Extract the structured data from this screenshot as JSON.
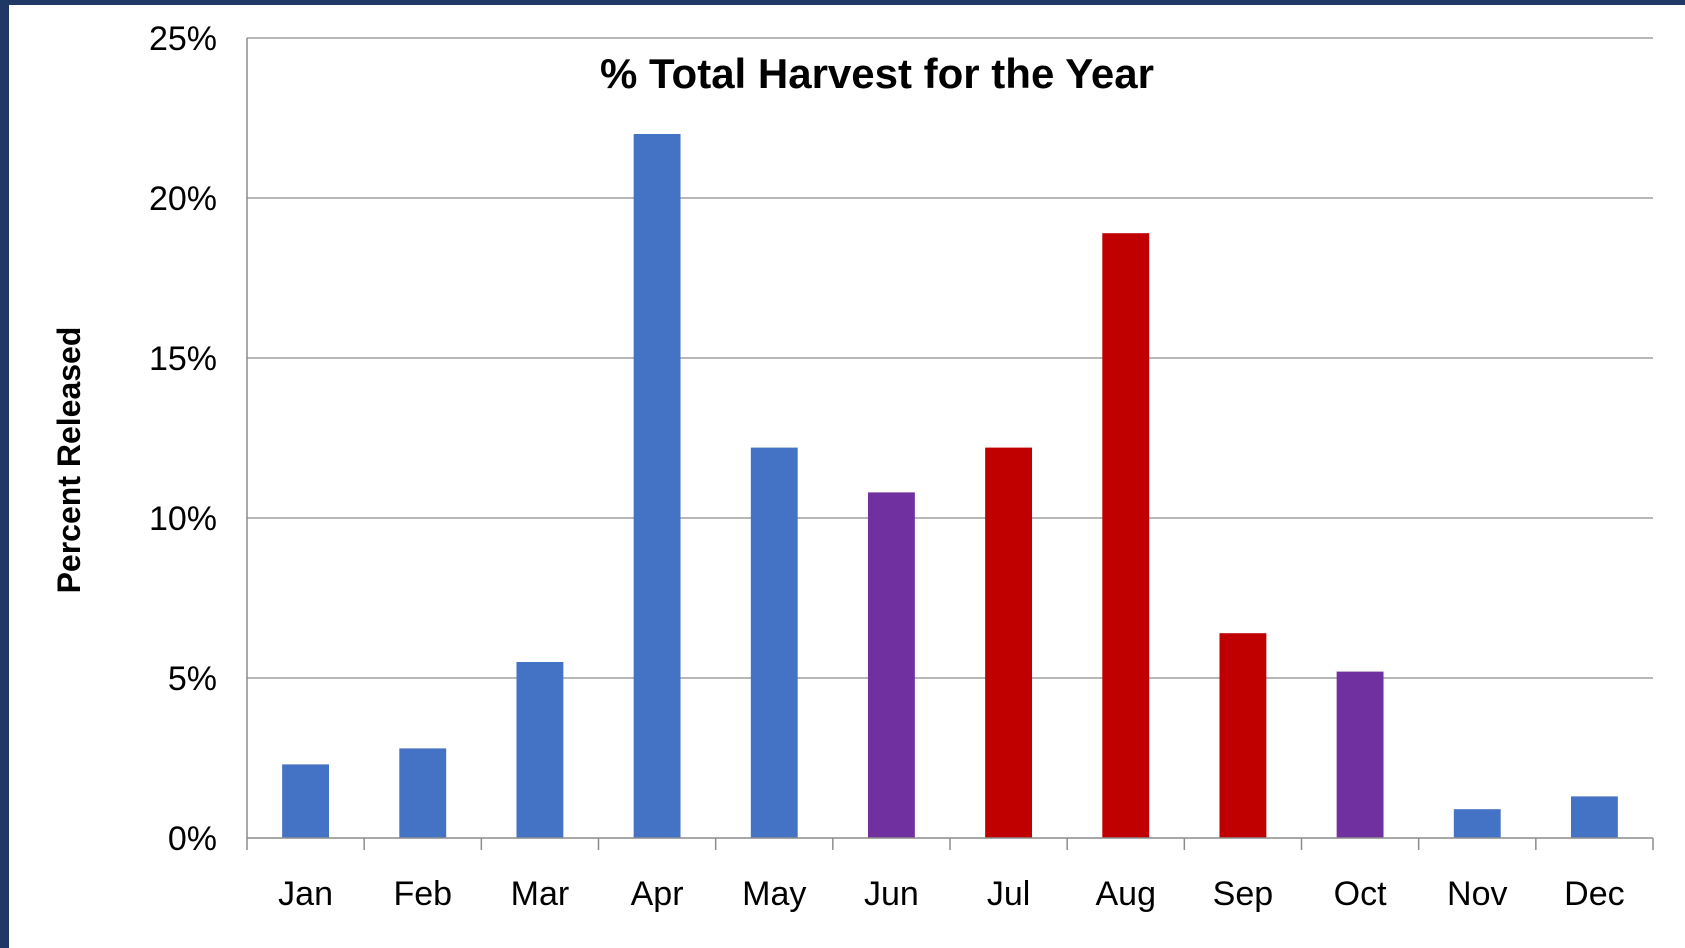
{
  "chart_data": {
    "type": "bar",
    "title": "% Total Harvest for the Year",
    "xlabel": "",
    "ylabel": "Percent Released",
    "categories": [
      "Jan",
      "Feb",
      "Mar",
      "Apr",
      "May",
      "Jun",
      "Jul",
      "Aug",
      "Sep",
      "Oct",
      "Nov",
      "Dec"
    ],
    "values": [
      2.3,
      2.8,
      5.5,
      22.0,
      12.2,
      10.8,
      12.2,
      18.9,
      6.4,
      5.2,
      0.9,
      1.3
    ],
    "bar_colors": [
      "#4472c4",
      "#4472c4",
      "#4472c4",
      "#4472c4",
      "#4472c4",
      "#7030a0",
      "#c00000",
      "#c00000",
      "#c00000",
      "#7030a0",
      "#4472c4",
      "#4472c4"
    ],
    "ylim": [
      0,
      25
    ],
    "yticks": [
      0,
      5,
      10,
      15,
      20,
      25
    ],
    "ytick_labels": [
      "0%",
      "5%",
      "10%",
      "15%",
      "20%",
      "25%"
    ],
    "grid": true,
    "legend": "none"
  },
  "colors": {
    "frame_border": "#1f3864",
    "gridline": "#8c8c8c",
    "axis": "#8c8c8c"
  }
}
